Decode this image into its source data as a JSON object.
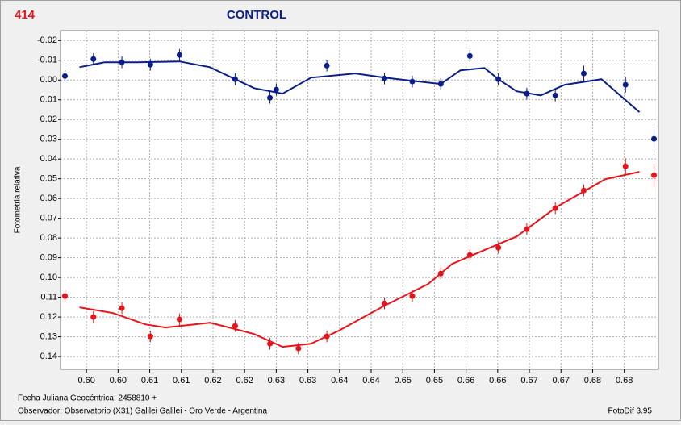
{
  "chart_data": {
    "type": "scatter",
    "label": "414",
    "title": "CONTROL",
    "ylabel": "Fotometria relativa",
    "footer_lines": [
      "Fecha Juliana Geocéntrica: 2458810 +",
      "Observador: Observatorio (X31) Galilei Galilei - Oro Verde - Argentina"
    ],
    "software": "FotoDif 3.95",
    "grid": true,
    "y_inverted": true,
    "xlim": [
      0.5939,
      0.6884
    ],
    "ylim": [
      -0.025,
      0.1465
    ],
    "xticks": [
      {
        "value": 0.598,
        "label": "0.60"
      },
      {
        "value": 0.603,
        "label": "0.60"
      },
      {
        "value": 0.608,
        "label": "0.61"
      },
      {
        "value": 0.613,
        "label": "0.61"
      },
      {
        "value": 0.618,
        "label": "0.62"
      },
      {
        "value": 0.623,
        "label": "0.62"
      },
      {
        "value": 0.628,
        "label": "0.63"
      },
      {
        "value": 0.633,
        "label": "0.63"
      },
      {
        "value": 0.638,
        "label": "0.64"
      },
      {
        "value": 0.643,
        "label": "0.64"
      },
      {
        "value": 0.648,
        "label": "0.65"
      },
      {
        "value": 0.653,
        "label": "0.65"
      },
      {
        "value": 0.658,
        "label": "0.66"
      },
      {
        "value": 0.663,
        "label": "0.66"
      },
      {
        "value": 0.668,
        "label": "0.67"
      },
      {
        "value": 0.673,
        "label": "0.67"
      },
      {
        "value": 0.678,
        "label": "0.68"
      },
      {
        "value": 0.683,
        "label": "0.68"
      }
    ],
    "yticks": [
      {
        "value": -0.02,
        "label": "-0.02"
      },
      {
        "value": -0.01,
        "label": "-0.01"
      },
      {
        "value": 0,
        "label": "0.00"
      },
      {
        "value": 0.01,
        "label": "0.01"
      },
      {
        "value": 0.02,
        "label": "0.02"
      },
      {
        "value": 0.03,
        "label": "0.03"
      },
      {
        "value": 0.04,
        "label": "0.04"
      },
      {
        "value": 0.05,
        "label": "0.05"
      },
      {
        "value": 0.06,
        "label": "0.06"
      },
      {
        "value": 0.07,
        "label": "0.07"
      },
      {
        "value": 0.08,
        "label": "0.08"
      },
      {
        "value": 0.09,
        "label": "0.09"
      },
      {
        "value": 0.1,
        "label": "0.10"
      },
      {
        "value": 0.11,
        "label": "0.11"
      },
      {
        "value": 0.12,
        "label": "0.12"
      },
      {
        "value": 0.13,
        "label": "0.13"
      },
      {
        "value": 0.14,
        "label": "0.14"
      }
    ],
    "series": [
      {
        "color": "#0b1f8a",
        "x": [
          0.5946,
          0.5991,
          0.6036,
          0.6081,
          0.6127,
          0.6215,
          0.627,
          0.628,
          0.636,
          0.6451,
          0.6495,
          0.654,
          0.6586,
          0.6631,
          0.6676,
          0.6721,
          0.6766,
          0.6832,
          0.6877
        ],
        "values": [
          -0.002,
          -0.0106,
          -0.009,
          -0.0078,
          -0.0127,
          -0.0004,
          0.009,
          0.0049,
          -0.0073,
          -0.0008,
          0.0008,
          0.002,
          -0.0122,
          -0.0004,
          0.0069,
          0.0078,
          -0.0033,
          0.0024,
          0.0298
        ],
        "errors": [
          0.003,
          0.003,
          0.003,
          0.003,
          0.003,
          0.003,
          0.003,
          0.003,
          0.003,
          0.003,
          0.003,
          0.003,
          0.003,
          0.003,
          0.003,
          0.003,
          0.004,
          0.004,
          0.006
        ],
        "fit_x": [
          0.5969,
          0.6009,
          0.606,
          0.6127,
          0.6175,
          0.6215,
          0.6245,
          0.629,
          0.6335,
          0.6405,
          0.6451,
          0.6495,
          0.654,
          0.6571,
          0.6609,
          0.6631,
          0.666,
          0.6698,
          0.6736,
          0.6794,
          0.6854
        ],
        "fit_values": [
          -0.0065,
          -0.009,
          -0.009,
          -0.0094,
          -0.0065,
          -0.0004,
          0.0041,
          0.0069,
          -0.0012,
          -0.0033,
          -0.0012,
          0.0004,
          0.002,
          -0.0049,
          -0.0061,
          -0.0004,
          0.0057,
          0.0078,
          0.0024,
          -0.0004,
          0.0163
        ]
      },
      {
        "color": "#e8141b",
        "x": [
          0.5946,
          0.5991,
          0.6036,
          0.6081,
          0.6127,
          0.6215,
          0.627,
          0.6315,
          0.636,
          0.6451,
          0.6495,
          0.654,
          0.6586,
          0.6631,
          0.6676,
          0.6721,
          0.6766,
          0.6832,
          0.6877
        ],
        "values": [
          0.1094,
          0.12,
          0.1155,
          0.1298,
          0.1212,
          0.1245,
          0.1335,
          0.1359,
          0.1298,
          0.1131,
          0.1094,
          0.098,
          0.0886,
          0.0849,
          0.0755,
          0.0649,
          0.0559,
          0.0437,
          0.0482
        ],
        "errors": [
          0.003,
          0.003,
          0.003,
          0.003,
          0.003,
          0.003,
          0.003,
          0.003,
          0.003,
          0.003,
          0.003,
          0.003,
          0.003,
          0.003,
          0.003,
          0.003,
          0.003,
          0.004,
          0.006
        ],
        "fit_x": [
          0.5969,
          0.6022,
          0.6073,
          0.6105,
          0.6175,
          0.6215,
          0.6245,
          0.629,
          0.6335,
          0.6379,
          0.6451,
          0.652,
          0.6558,
          0.6609,
          0.666,
          0.6724,
          0.68,
          0.6854
        ],
        "fit_values": [
          0.1151,
          0.118,
          0.1237,
          0.1253,
          0.1229,
          0.1261,
          0.1286,
          0.1351,
          0.1335,
          0.1269,
          0.1143,
          0.1033,
          0.0931,
          0.0861,
          0.0792,
          0.0641,
          0.0502,
          0.0465
        ]
      }
    ]
  }
}
